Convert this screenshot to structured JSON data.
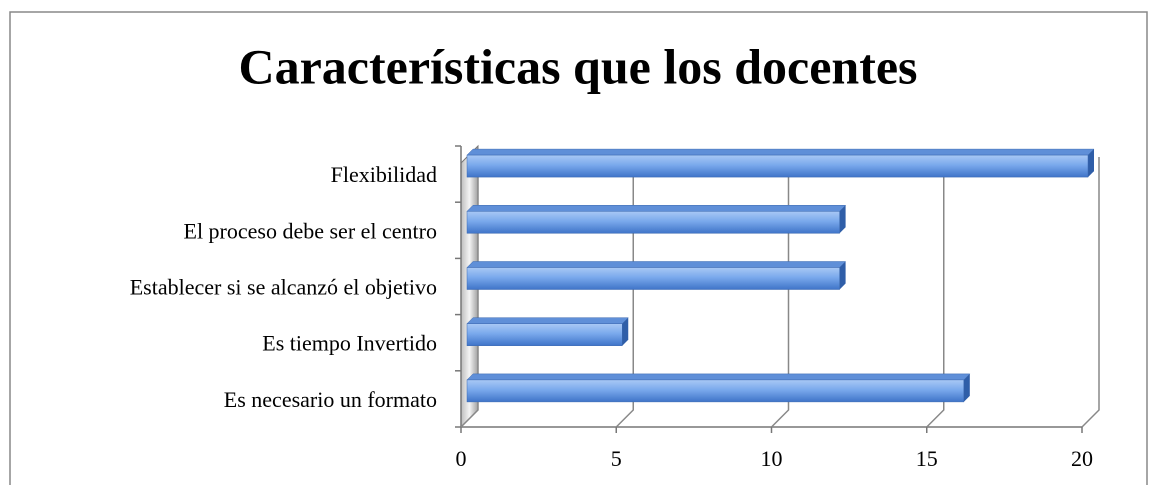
{
  "chart_data": {
    "type": "bar",
    "orientation": "horizontal",
    "title": "Características que los docentes",
    "categories": [
      "Flexibilidad",
      "El proceso debe ser el centro",
      "Establecer si se alcanzó el objetivo",
      "Es tiempo Invertido",
      "Es necesario un formato"
    ],
    "values": [
      20,
      12,
      12,
      5,
      16
    ],
    "color": "#4f81bd",
    "xlim": [
      0,
      20
    ],
    "xticks": [
      0,
      5,
      10,
      15,
      20
    ],
    "grid": true
  }
}
